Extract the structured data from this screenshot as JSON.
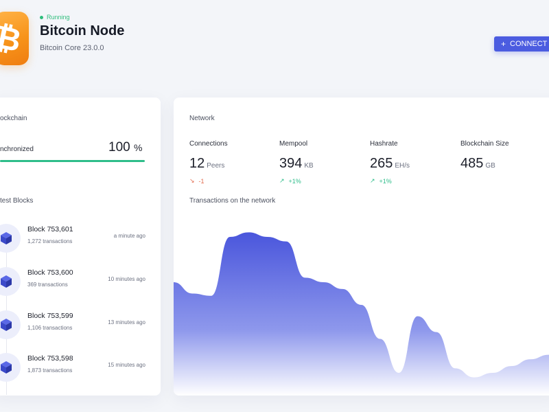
{
  "header": {
    "app_icon": "bitcoin-icon",
    "icon_glyph": "₿",
    "status": "Running",
    "title": "Bitcoin Node",
    "subtitle": "Bitcoin Core 23.0.0",
    "connect_label": "CONNECT",
    "connect_icon": "plus-icon"
  },
  "blockchain": {
    "section_label": "ockchain",
    "sync_label": "nchronized",
    "sync_value": "100",
    "sync_unit": "%",
    "sync_fraction": 1.0,
    "latest_label": "test Blocks",
    "blocks": [
      {
        "name": "Block 753,601",
        "tx": "1,272 transactions",
        "time": "a minute ago"
      },
      {
        "name": "Block 753,600",
        "tx": "369 transactions",
        "time": "10 minutes ago"
      },
      {
        "name": "Block 753,599",
        "tx": "1,106 transactions",
        "time": "13 minutes ago"
      },
      {
        "name": "Block 753,598",
        "tx": "1,873 transactions",
        "time": "15 minutes ago"
      }
    ]
  },
  "network": {
    "section_label": "Network",
    "metrics": [
      {
        "label": "Connections",
        "value": "12",
        "unit": "Peers",
        "delta": "-1",
        "trend": "down"
      },
      {
        "label": "Mempool",
        "value": "394",
        "unit": "KB",
        "delta": "+1%",
        "trend": "up"
      },
      {
        "label": "Hashrate",
        "value": "265",
        "unit": "EH/s",
        "delta": "+1%",
        "trend": "up"
      },
      {
        "label": "Blockchain Size",
        "value": "485",
        "unit": "GB",
        "delta": "",
        "trend": ""
      }
    ],
    "chart_label": "Transactions on the network"
  },
  "colors": {
    "accent": "#4b5ce0",
    "running": "#2ebd7c",
    "bitcoin": "#f7931a",
    "up": "#2ebd8a",
    "down": "#e26a4d"
  },
  "chart_data": {
    "type": "area",
    "title": "Transactions on the network",
    "xlabel": "",
    "ylabel": "",
    "x": [
      0,
      1,
      2,
      3,
      4,
      5,
      6,
      7,
      8,
      9,
      10,
      11,
      12,
      13,
      14,
      15,
      16,
      17,
      18,
      19,
      20
    ],
    "values": [
      0.5,
      0.45,
      0.44,
      0.7,
      0.72,
      0.7,
      0.68,
      0.52,
      0.5,
      0.47,
      0.4,
      0.25,
      0.1,
      0.35,
      0.28,
      0.12,
      0.08,
      0.1,
      0.13,
      0.16,
      0.18
    ],
    "ylim": [
      0,
      0.8
    ],
    "grid": false,
    "legend": "none"
  }
}
